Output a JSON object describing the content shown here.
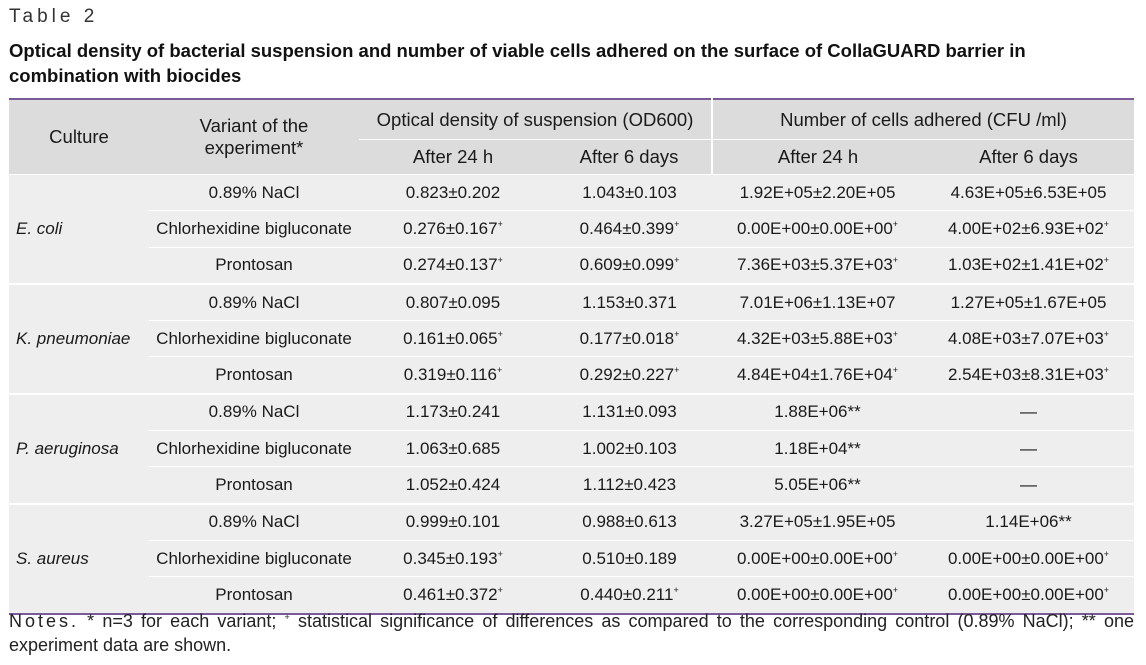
{
  "table_label": "Table 2",
  "caption": "Optical density of bacterial suspension and number of viable cells adhered on the surface of CollaGUARD barrier in combination with biocides",
  "headers": {
    "culture": "Culture",
    "variant": "Variant of the experiment*",
    "od_group": "Optical density of suspension (OD600)",
    "cfu_group": "Number of cells adhered (CFU /ml)",
    "sub": [
      "After 24 h",
      "After 6 days",
      "After 24 h",
      "After 6 days"
    ]
  },
  "groups": [
    {
      "culture": "E. coli",
      "rows": [
        {
          "variant": "0.89% NaCl",
          "od24": "0.823±0.202",
          "od6": "1.043±0.103",
          "cfu24": "1.92E+05±2.20E+05",
          "cfu6": "4.63E+05±6.53E+05"
        },
        {
          "variant": "Chlorhexidine bigluconate",
          "od24": "0.276±0.167",
          "od24_sup": "+",
          "od6": "0.464±0.399",
          "od6_sup": "+",
          "cfu24": "0.00E+00±0.00E+00",
          "cfu24_sup": "+",
          "cfu6": "4.00E+02±6.93E+02",
          "cfu6_sup": "+"
        },
        {
          "variant": "Prontosan",
          "od24": "0.274±0.137",
          "od24_sup": "+",
          "od6": "0.609±0.099",
          "od6_sup": "+",
          "cfu24": "7.36E+03±5.37E+03",
          "cfu24_sup": "+",
          "cfu6": "1.03E+02±1.41E+02",
          "cfu6_sup": "+"
        }
      ]
    },
    {
      "culture": "K. pneumoniae",
      "rows": [
        {
          "variant": "0.89% NaCl",
          "od24": "0.807±0.095",
          "od6": "1.153±0.371",
          "cfu24": "7.01E+06±1.13E+07",
          "cfu6": "1.27E+05±1.67E+05"
        },
        {
          "variant": "Chlorhexidine bigluconate",
          "od24": "0.161±0.065",
          "od24_sup": "+",
          "od6": "0.177±0.018",
          "od6_sup": "+",
          "cfu24": "4.32E+03±5.88E+03",
          "cfu24_sup": "+",
          "cfu6": "4.08E+03±7.07E+03",
          "cfu6_sup": "+"
        },
        {
          "variant": "Prontosan",
          "od24": "0.319±0.116",
          "od24_sup": "+",
          "od6": "0.292±0.227",
          "od6_sup": "+",
          "cfu24": "4.84E+04±1.76E+04",
          "cfu24_sup": "+",
          "cfu6": "2.54E+03±8.31E+03",
          "cfu6_sup": "+"
        }
      ]
    },
    {
      "culture": "P. aeruginosa",
      "rows": [
        {
          "variant": "0.89% NaCl",
          "od24": "1.173±0.241",
          "od6": "1.131±0.093",
          "cfu24": "1.88E+06**",
          "cfu6": "—"
        },
        {
          "variant": "Chlorhexidine bigluconate",
          "od24": "1.063±0.685",
          "od6": "1.002±0.103",
          "cfu24": "1.18E+04**",
          "cfu6": "—"
        },
        {
          "variant": "Prontosan",
          "od24": "1.052±0.424",
          "od6": "1.112±0.423",
          "cfu24": "5.05E+06**",
          "cfu6": "—"
        }
      ]
    },
    {
      "culture": "S. aureus",
      "rows": [
        {
          "variant": "0.89% NaCl",
          "od24": "0.999±0.101",
          "od6": "0.988±0.613",
          "cfu24": "3.27E+05±1.95E+05",
          "cfu6": "1.14E+06**"
        },
        {
          "variant": "Chlorhexidine bigluconate",
          "od24": "0.345±0.193",
          "od24_sup": "+",
          "od6": "0.510±0.189",
          "cfu24": "0.00E+00±0.00E+00",
          "cfu24_sup": "+",
          "cfu6": "0.00E+00±0.00E+00",
          "cfu6_sup": "+"
        },
        {
          "variant": "Prontosan",
          "od24": "0.461±0.372",
          "od24_sup": "+",
          "od6": "0.440±0.211",
          "od6_sup": "+",
          "cfu24": "0.00E+00±0.00E+00",
          "cfu24_sup": "+",
          "cfu6": "0.00E+00±0.00E+00",
          "cfu6_sup": "+"
        }
      ]
    }
  ],
  "notes": {
    "lead": "Notes.",
    "text_1": " * n=3 for each variant; ",
    "sup": "+",
    "text_2": " statistical significance of differences as compared to the corresponding control (0.89% NaCl); ** one experiment data are shown."
  }
}
